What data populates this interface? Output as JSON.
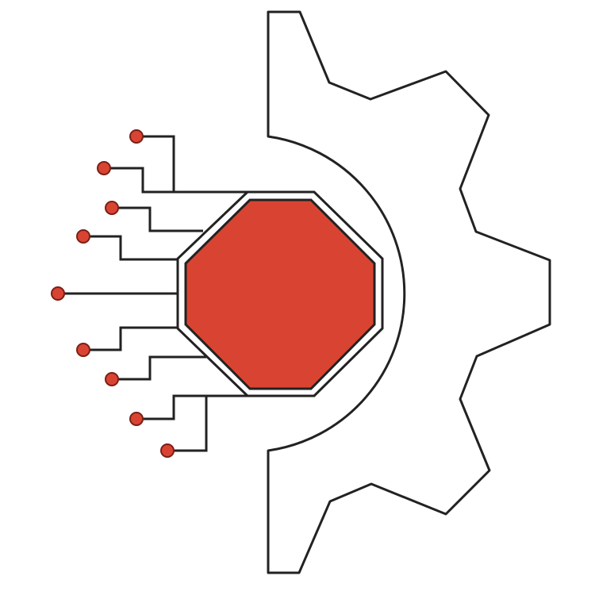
{
  "logo": {
    "icon": "gear-circuit-stop-icon",
    "colors": {
      "background": "#ffffff",
      "outline": "#222222",
      "accent": "#d94432",
      "accent_dark": "#7a1f16"
    }
  }
}
